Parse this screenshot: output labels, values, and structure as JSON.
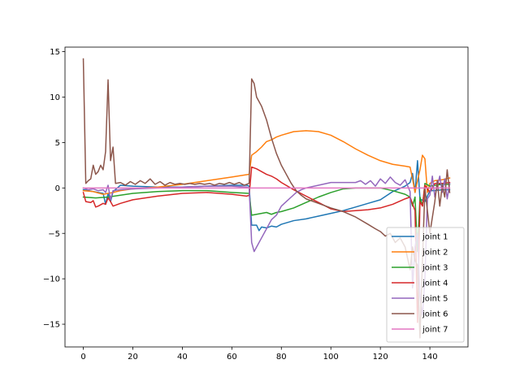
{
  "chart_data": {
    "type": "line",
    "title": "",
    "xlabel": "",
    "ylabel": "",
    "xlim": [
      -7.4,
      155.4
    ],
    "ylim": [
      -17.5,
      15.5
    ],
    "xticks": [
      0,
      20,
      40,
      60,
      80,
      100,
      120,
      140
    ],
    "yticks": [
      -15,
      -10,
      -5,
      0,
      5,
      10,
      15
    ],
    "grid": false,
    "legend_position": "lower-right",
    "series": [
      {
        "name": "joint 1",
        "color": "#1f77b4",
        "points": [
          [
            0,
            -0.2
          ],
          [
            2,
            -0.3
          ],
          [
            4,
            -0.4
          ],
          [
            6,
            -0.5
          ],
          [
            8,
            -0.6
          ],
          [
            9,
            -1.8
          ],
          [
            10,
            -0.6
          ],
          [
            11,
            -1.5
          ],
          [
            12,
            -0.4
          ],
          [
            15,
            0.3
          ],
          [
            20,
            0.2
          ],
          [
            30,
            0.1
          ],
          [
            40,
            0.1
          ],
          [
            50,
            0.2
          ],
          [
            60,
            0.3
          ],
          [
            66,
            0.3
          ],
          [
            67,
            0.2
          ],
          [
            68,
            -4.1
          ],
          [
            70,
            -4.1
          ],
          [
            71,
            -4.7
          ],
          [
            72,
            -4.3
          ],
          [
            74,
            -4.4
          ],
          [
            76,
            -4.2
          ],
          [
            78,
            -4.3
          ],
          [
            80,
            -4.0
          ],
          [
            85,
            -3.6
          ],
          [
            90,
            -3.4
          ],
          [
            95,
            -3.1
          ],
          [
            100,
            -2.8
          ],
          [
            105,
            -2.5
          ],
          [
            110,
            -2.1
          ],
          [
            115,
            -1.7
          ],
          [
            120,
            -1.3
          ],
          [
            125,
            -0.4
          ],
          [
            130,
            0.2
          ],
          [
            132,
            0.6
          ],
          [
            133,
            1.6
          ],
          [
            134,
            -0.5
          ],
          [
            135,
            3.0
          ],
          [
            136,
            -1.2
          ],
          [
            138,
            -1.5
          ],
          [
            140,
            -0.3
          ],
          [
            142,
            -0.3
          ],
          [
            145,
            -0.2
          ],
          [
            148,
            -0.2
          ]
        ]
      },
      {
        "name": "joint 2",
        "color": "#ff7f0e",
        "points": [
          [
            0,
            -0.3
          ],
          [
            4,
            -0.4
          ],
          [
            8,
            -0.7
          ],
          [
            10,
            -0.6
          ],
          [
            12,
            -0.5
          ],
          [
            15,
            -0.3
          ],
          [
            20,
            -0.1
          ],
          [
            30,
            0.1
          ],
          [
            40,
            0.4
          ],
          [
            50,
            0.8
          ],
          [
            60,
            1.2
          ],
          [
            67,
            1.5
          ],
          [
            68,
            3.6
          ],
          [
            70,
            4.0
          ],
          [
            72,
            4.5
          ],
          [
            74,
            5.1
          ],
          [
            76,
            5.3
          ],
          [
            78,
            5.6
          ],
          [
            80,
            5.8
          ],
          [
            85,
            6.2
          ],
          [
            90,
            6.3
          ],
          [
            95,
            6.2
          ],
          [
            100,
            5.8
          ],
          [
            105,
            5.1
          ],
          [
            110,
            4.3
          ],
          [
            115,
            3.6
          ],
          [
            120,
            3.0
          ],
          [
            125,
            2.6
          ],
          [
            130,
            2.4
          ],
          [
            132,
            2.3
          ],
          [
            133,
            1.0
          ],
          [
            134,
            -0.5
          ],
          [
            135,
            0.8
          ],
          [
            136,
            2.0
          ],
          [
            137,
            3.6
          ],
          [
            138,
            3.2
          ],
          [
            139,
            -0.5
          ],
          [
            140,
            0.5
          ],
          [
            142,
            0.8
          ],
          [
            145,
            0.9
          ],
          [
            148,
            1.1
          ]
        ]
      },
      {
        "name": "joint 3",
        "color": "#2ca02c",
        "points": [
          [
            0,
            -1.0
          ],
          [
            5,
            -1.1
          ],
          [
            10,
            -1.0
          ],
          [
            15,
            -0.8
          ],
          [
            20,
            -0.6
          ],
          [
            30,
            -0.4
          ],
          [
            40,
            -0.3
          ],
          [
            50,
            -0.3
          ],
          [
            60,
            -0.5
          ],
          [
            67,
            -0.6
          ],
          [
            68,
            -3.0
          ],
          [
            70,
            -2.9
          ],
          [
            72,
            -2.8
          ],
          [
            74,
            -2.7
          ],
          [
            76,
            -2.9
          ],
          [
            78,
            -2.7
          ],
          [
            80,
            -2.6
          ],
          [
            85,
            -2.2
          ],
          [
            90,
            -1.6
          ],
          [
            95,
            -1.0
          ],
          [
            100,
            -0.5
          ],
          [
            105,
            -0.1
          ],
          [
            110,
            0.0
          ],
          [
            115,
            0.0
          ],
          [
            120,
            0.0
          ],
          [
            125,
            -0.3
          ],
          [
            130,
            -0.7
          ],
          [
            132,
            -1.0
          ],
          [
            133,
            -2.0
          ],
          [
            134,
            -1.0
          ],
          [
            135,
            -7.0
          ],
          [
            136,
            -1.0
          ],
          [
            137,
            -2.0
          ],
          [
            138,
            0.5
          ],
          [
            140,
            0.2
          ],
          [
            142,
            0.3
          ],
          [
            145,
            0.4
          ],
          [
            148,
            0.4
          ]
        ]
      },
      {
        "name": "joint 4",
        "color": "#d62728",
        "points": [
          [
            0,
            -0.5
          ],
          [
            1,
            -1.5
          ],
          [
            3,
            -1.6
          ],
          [
            4,
            -1.4
          ],
          [
            5,
            -2.1
          ],
          [
            6,
            -2.0
          ],
          [
            8,
            -1.7
          ],
          [
            9,
            -1.8
          ],
          [
            10,
            -1.1
          ],
          [
            11,
            -1.5
          ],
          [
            12,
            -2.0
          ],
          [
            15,
            -1.7
          ],
          [
            20,
            -1.3
          ],
          [
            30,
            -0.9
          ],
          [
            40,
            -0.6
          ],
          [
            50,
            -0.5
          ],
          [
            60,
            -0.7
          ],
          [
            66,
            -0.9
          ],
          [
            67,
            -0.8
          ],
          [
            68,
            2.3
          ],
          [
            70,
            2.1
          ],
          [
            72,
            1.8
          ],
          [
            74,
            1.5
          ],
          [
            76,
            1.3
          ],
          [
            78,
            1.0
          ],
          [
            80,
            0.6
          ],
          [
            85,
            -0.2
          ],
          [
            90,
            -0.9
          ],
          [
            95,
            -1.6
          ],
          [
            100,
            -2.3
          ],
          [
            105,
            -2.6
          ],
          [
            110,
            -2.5
          ],
          [
            115,
            -2.4
          ],
          [
            120,
            -2.2
          ],
          [
            125,
            -1.8
          ],
          [
            130,
            -1.2
          ],
          [
            132,
            -1.0
          ],
          [
            134,
            -2.5
          ],
          [
            135,
            -14.8
          ],
          [
            136,
            -1.5
          ],
          [
            137,
            -2.0
          ],
          [
            138,
            0.3
          ],
          [
            140,
            -0.5
          ],
          [
            142,
            0.5
          ],
          [
            145,
            0.5
          ],
          [
            148,
            0.6
          ]
        ]
      },
      {
        "name": "joint 5",
        "color": "#9467bd",
        "points": [
          [
            0,
            0.0
          ],
          [
            2,
            -0.2
          ],
          [
            4,
            -0.1
          ],
          [
            6,
            -0.3
          ],
          [
            8,
            -0.2
          ],
          [
            9,
            -0.5
          ],
          [
            10,
            0.3
          ],
          [
            11,
            -1.3
          ],
          [
            12,
            -0.3
          ],
          [
            15,
            -0.2
          ],
          [
            20,
            -0.1
          ],
          [
            30,
            0.0
          ],
          [
            40,
            0.1
          ],
          [
            50,
            0.2
          ],
          [
            60,
            0.2
          ],
          [
            66,
            0.1
          ],
          [
            67,
            0.0
          ],
          [
            68,
            -6.0
          ],
          [
            69,
            -7.0
          ],
          [
            70,
            -6.5
          ],
          [
            72,
            -5.5
          ],
          [
            74,
            -4.5
          ],
          [
            76,
            -3.5
          ],
          [
            78,
            -3.0
          ],
          [
            80,
            -2.0
          ],
          [
            82,
            -1.5
          ],
          [
            84,
            -1.0
          ],
          [
            86,
            -0.5
          ],
          [
            88,
            -0.2
          ],
          [
            90,
            0.0
          ],
          [
            95,
            0.3
          ],
          [
            100,
            0.6
          ],
          [
            105,
            0.6
          ],
          [
            110,
            0.6
          ],
          [
            112,
            0.8
          ],
          [
            114,
            0.4
          ],
          [
            116,
            0.8
          ],
          [
            118,
            0.2
          ],
          [
            120,
            1.0
          ],
          [
            122,
            0.5
          ],
          [
            124,
            1.2
          ],
          [
            126,
            0.6
          ],
          [
            128,
            0.3
          ],
          [
            130,
            0.9
          ],
          [
            132,
            -0.4
          ],
          [
            133,
            -11.0
          ],
          [
            134,
            -6.5
          ],
          [
            135,
            -5.0
          ],
          [
            136,
            -12.0
          ],
          [
            137,
            -14.0
          ],
          [
            138,
            -10.0
          ],
          [
            139,
            -1.2
          ],
          [
            140,
            -0.8
          ],
          [
            141,
            1.3
          ],
          [
            142,
            -1.0
          ],
          [
            143,
            0.2
          ],
          [
            144,
            1.3
          ],
          [
            145,
            -0.5
          ],
          [
            146,
            1.0
          ],
          [
            147,
            -1.2
          ],
          [
            148,
            0.5
          ]
        ]
      },
      {
        "name": "joint 6",
        "color": "#8c564b",
        "points": [
          [
            0,
            14.2
          ],
          [
            1,
            0.5
          ],
          [
            2,
            0.8
          ],
          [
            3,
            1.0
          ],
          [
            4,
            2.5
          ],
          [
            5,
            1.5
          ],
          [
            6,
            1.8
          ],
          [
            7,
            2.5
          ],
          [
            8,
            2.0
          ],
          [
            9,
            4.0
          ],
          [
            10,
            11.9
          ],
          [
            11,
            3.0
          ],
          [
            12,
            4.5
          ],
          [
            13,
            0.5
          ],
          [
            15,
            0.6
          ],
          [
            17,
            0.3
          ],
          [
            19,
            0.7
          ],
          [
            21,
            0.4
          ],
          [
            23,
            0.8
          ],
          [
            25,
            0.5
          ],
          [
            27,
            1.0
          ],
          [
            29,
            0.4
          ],
          [
            31,
            0.7
          ],
          [
            33,
            0.3
          ],
          [
            35,
            0.6
          ],
          [
            37,
            0.4
          ],
          [
            39,
            0.5
          ],
          [
            41,
            0.4
          ],
          [
            43,
            0.5
          ],
          [
            45,
            0.4
          ],
          [
            47,
            0.5
          ],
          [
            49,
            0.4
          ],
          [
            51,
            0.5
          ],
          [
            53,
            0.3
          ],
          [
            55,
            0.5
          ],
          [
            57,
            0.4
          ],
          [
            59,
            0.6
          ],
          [
            61,
            0.4
          ],
          [
            63,
            0.6
          ],
          [
            65,
            0.3
          ],
          [
            67,
            0.5
          ],
          [
            68,
            12.0
          ],
          [
            69,
            11.5
          ],
          [
            70,
            10.0
          ],
          [
            72,
            9.0
          ],
          [
            74,
            7.5
          ],
          [
            76,
            5.5
          ],
          [
            78,
            3.8
          ],
          [
            80,
            2.5
          ],
          [
            82,
            1.5
          ],
          [
            84,
            0.5
          ],
          [
            86,
            -0.3
          ],
          [
            88,
            -0.8
          ],
          [
            90,
            -1.2
          ],
          [
            95,
            -1.7
          ],
          [
            100,
            -2.2
          ],
          [
            105,
            -2.6
          ],
          [
            110,
            -3.2
          ],
          [
            115,
            -4.0
          ],
          [
            118,
            -4.5
          ],
          [
            120,
            -4.8
          ],
          [
            122,
            -5.3
          ],
          [
            124,
            -5.0
          ],
          [
            126,
            -6.0
          ],
          [
            128,
            -5.5
          ],
          [
            130,
            -6.5
          ],
          [
            132,
            -9.0
          ],
          [
            133,
            -6.5
          ],
          [
            134,
            -8.0
          ],
          [
            135,
            -8.5
          ],
          [
            136,
            -16.5
          ],
          [
            137,
            -8.0
          ],
          [
            138,
            0.0
          ],
          [
            140,
            -5.0
          ],
          [
            142,
            -1.5
          ],
          [
            143,
            0.8
          ],
          [
            144,
            -2.0
          ],
          [
            145,
            0.3
          ],
          [
            146,
            -1.0
          ],
          [
            147,
            2.0
          ],
          [
            148,
            -0.5
          ]
        ]
      },
      {
        "name": "joint 7",
        "color": "#e377c2",
        "points": [
          [
            0,
            0.0
          ],
          [
            20,
            0.0
          ],
          [
            40,
            0.0
          ],
          [
            60,
            0.0
          ],
          [
            80,
            0.0
          ],
          [
            100,
            0.0
          ],
          [
            120,
            0.0
          ],
          [
            140,
            0.0
          ],
          [
            148,
            0.0
          ]
        ]
      }
    ]
  }
}
